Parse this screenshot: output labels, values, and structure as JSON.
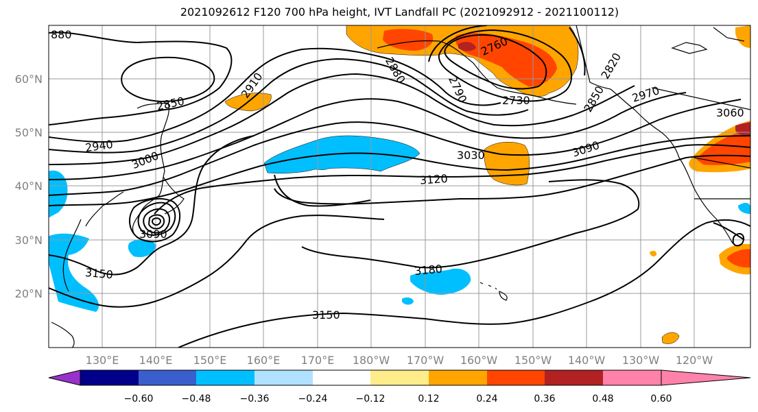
{
  "title": "2021092612 F120 700 hPa height, IVT Landfall PC (2021092912 - 2021100112)",
  "lat_labels": [
    "60°N",
    "50°N",
    "40°N",
    "30°N",
    "20°N"
  ],
  "lon_labels": [
    "130°E",
    "140°E",
    "150°E",
    "160°E",
    "170°E",
    "180°W",
    "170°W",
    "160°W",
    "150°W",
    "140°W",
    "130°W",
    "120°W"
  ],
  "contour_labels": [
    {
      "text": "2850"
    },
    {
      "text": "2940"
    },
    {
      "text": "3000"
    },
    {
      "text": "3090"
    },
    {
      "text": "3150"
    },
    {
      "text": "2910"
    },
    {
      "text": "2880"
    },
    {
      "text": "2760"
    },
    {
      "text": "2790"
    },
    {
      "text": "2730"
    },
    {
      "text": "2820"
    },
    {
      "text": "2850"
    },
    {
      "text": "2970"
    },
    {
      "text": "3060"
    },
    {
      "text": "3090"
    },
    {
      "text": "3030"
    },
    {
      "text": "3120"
    },
    {
      "text": "3180"
    },
    {
      "text": "3150"
    },
    {
      "text": "880"
    }
  ],
  "colorbar": {
    "colors": [
      "#9932cc",
      "#00008b",
      "#3a5fcd",
      "#00bfff",
      "#b0e2ff",
      "#ffffff",
      "#ffec8b",
      "#ffa500",
      "#ff4500",
      "#b22222",
      "#ff82ab"
    ],
    "tick_labels": [
      "−0.60",
      "−0.48",
      "−0.36",
      "−0.24",
      "−0.12",
      "0.12",
      "0.24",
      "0.36",
      "0.48",
      "0.60"
    ]
  }
}
